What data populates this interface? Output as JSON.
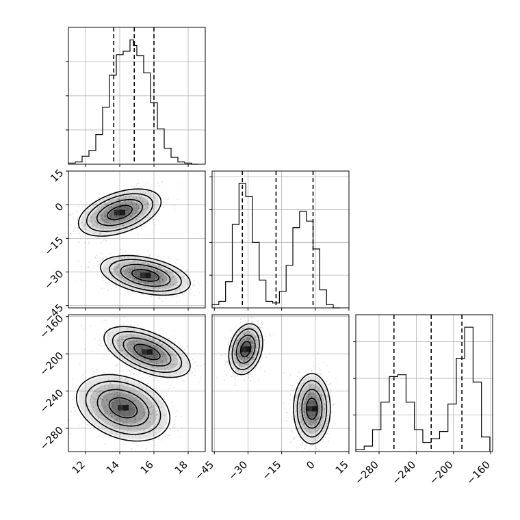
{
  "chart_data": {
    "type": "corner",
    "grid": true,
    "parameters": [
      {
        "id": "p0",
        "range": [
          11.0,
          19.0
        ],
        "ticks": [
          12,
          14,
          16,
          18
        ],
        "tick_labels": [
          "12",
          "14",
          "16",
          "18"
        ],
        "quantiles": [
          13.65,
          14.85,
          16.0
        ],
        "histogram": {
          "bins": [
            11.0,
            11.4,
            11.8,
            12.2,
            12.6,
            13.0,
            13.4,
            13.8,
            14.2,
            14.6,
            14.8,
            15.0,
            15.4,
            15.8,
            16.2,
            16.6,
            17.0,
            17.4,
            17.8,
            18.2,
            18.6
          ],
          "counts": [
            1,
            2,
            7,
            12,
            26,
            50,
            78,
            96,
            99,
            109,
            104,
            95,
            80,
            54,
            31,
            14,
            6,
            2,
            1,
            0
          ]
        }
      },
      {
        "id": "p1",
        "range": [
          -46.0,
          15.0
        ],
        "ticks": [
          -45,
          -30,
          -15,
          0,
          15
        ],
        "tick_labels": [
          "−45",
          "−30",
          "−15",
          "0",
          "15"
        ],
        "quantiles": [
          -32.5,
          -17.5,
          -1.0
        ],
        "histogram": {
          "bins": [
            -46,
            -43,
            -40,
            -37,
            -34,
            -31,
            -28,
            -25,
            -22,
            -19,
            -16,
            -13,
            -10,
            -7,
            -4,
            -1,
            2,
            5,
            8,
            11
          ],
          "counts": [
            2,
            4,
            16,
            51,
            76,
            68,
            40,
            17,
            4,
            3,
            10,
            26,
            49,
            59,
            53,
            36,
            11,
            2,
            0
          ]
        }
      },
      {
        "id": "p2",
        "range": [
          -305.0,
          -158.0
        ],
        "ticks": [
          -280,
          -240,
          -200,
          -160
        ],
        "tick_labels": [
          "−280",
          "−240",
          "−200",
          "−160"
        ],
        "quantiles": [
          -264.0,
          -224.0,
          -191.0
        ],
        "histogram": {
          "bins": [
            -305,
            -296,
            -287,
            -278,
            -269,
            -260,
            -251,
            -242,
            -233,
            -224,
            -215,
            -206,
            -197,
            -188,
            -179,
            -170,
            -161
          ],
          "counts": [
            1,
            3,
            12,
            27,
            41,
            42,
            27,
            12,
            5,
            7,
            11,
            26,
            51,
            68,
            38,
            8
          ]
        }
      }
    ],
    "pairs": [
      {
        "x": "p0",
        "y": "p1",
        "clusters": [
          {
            "center": [
              14.0,
              -3.5
            ],
            "sd": [
              1.15,
              5.0
            ],
            "corr": 0.45,
            "n": 900
          },
          {
            "center": [
              15.5,
              -31.5
            ],
            "sd": [
              1.25,
              4.2
            ],
            "corr": -0.4,
            "n": 900
          }
        ],
        "contour_levels": [
          1.0,
          0.8,
          0.55,
          0.3
        ]
      },
      {
        "x": "p0",
        "y": "p2",
        "clusters": [
          {
            "center": [
              15.6,
              -198.0
            ],
            "sd": [
              1.2,
              13.0
            ],
            "corr": -0.55,
            "n": 850
          },
          {
            "center": [
              14.2,
              -258.0
            ],
            "sd": [
              1.3,
              17.0
            ],
            "corr": -0.3,
            "n": 850
          }
        ],
        "contour_levels": [
          1.0,
          0.8,
          0.55,
          0.3
        ]
      },
      {
        "x": "p1",
        "y": "p2",
        "clusters": [
          {
            "center": [
              -31.0,
              -195.0
            ],
            "sd": [
              3.6,
              13.0
            ],
            "corr": 0.25,
            "n": 850
          },
          {
            "center": [
              -1.5,
              -259.0
            ],
            "sd": [
              3.9,
              18.0
            ],
            "corr": 0.0,
            "n": 850
          }
        ],
        "contour_levels": [
          1.0,
          0.8,
          0.55,
          0.3
        ]
      }
    ]
  }
}
